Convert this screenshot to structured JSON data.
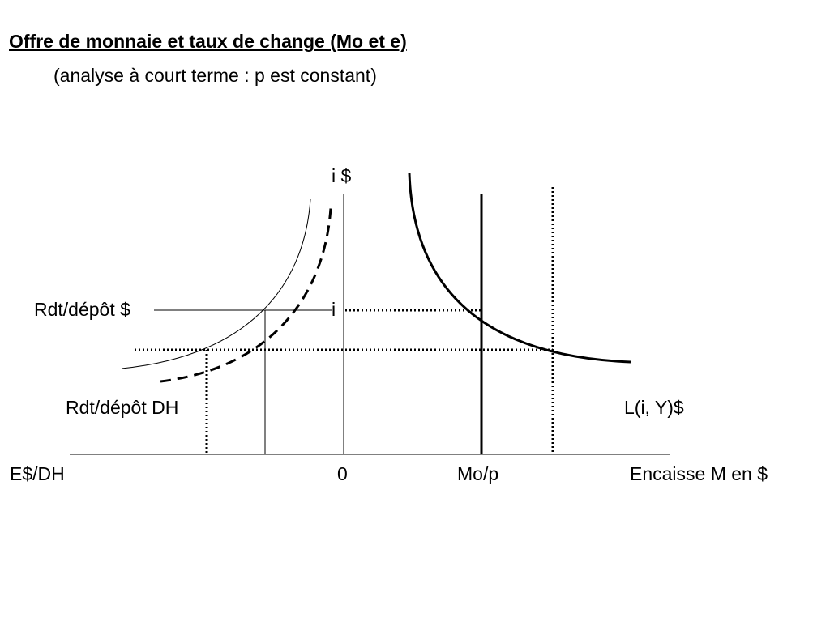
{
  "title": "Offre de monnaie et taux de change (Mo et e)",
  "subtitle": "(analyse à court terme : p est constant)",
  "labels": {
    "y_axis": "i $",
    "rdt_depot_dollar": "Rdt/dépôt $",
    "i_level": "i",
    "rdt_depot_dh": "Rdt/dépôt DH",
    "money_demand": "L(i, Y)$",
    "exchange_rate_axis": "E$/DH",
    "origin": "0",
    "money_supply": "Mo/p",
    "x_axis": "Encaisse M en $"
  },
  "colors": {
    "ink": "#000000",
    "background": "#ffffff"
  }
}
